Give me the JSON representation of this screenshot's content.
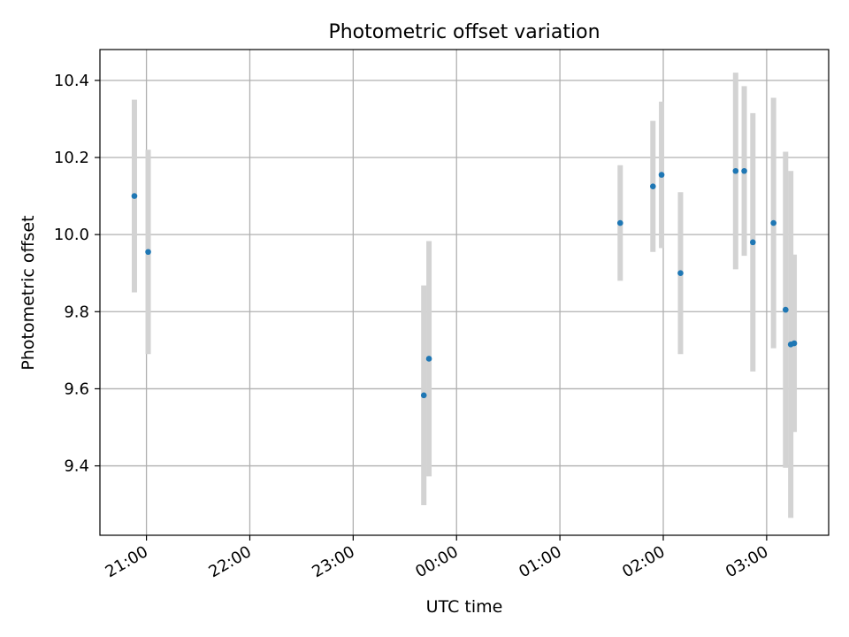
{
  "chart_data": {
    "type": "scatter",
    "title": "Photometric offset variation",
    "xlabel": "UTC time",
    "ylabel": "Photometric offset",
    "x_is_time": true,
    "x_ticks": [
      "21:00",
      "22:00",
      "23:00",
      "00:00",
      "01:00",
      "02:00",
      "03:00"
    ],
    "y_ticks": [
      "9.4",
      "9.6",
      "9.8",
      "10.0",
      "10.2",
      "10.4"
    ],
    "xlim": [
      "20:33",
      "03:36"
    ],
    "ylim": [
      9.22,
      10.48
    ],
    "grid": true,
    "error_bars": true,
    "series": [
      {
        "points": [
          {
            "x": "20:53",
            "y": 10.1,
            "yerr_low": 0.25,
            "yerr_high": 0.25
          },
          {
            "x": "21:01",
            "y": 9.955,
            "yerr_low": 0.265,
            "yerr_high": 0.265
          },
          {
            "x": "23:41",
            "y": 9.583,
            "yerr_low": 0.285,
            "yerr_high": 0.285
          },
          {
            "x": "23:44",
            "y": 9.678,
            "yerr_low": 0.305,
            "yerr_high": 0.305
          },
          {
            "x": "01:35",
            "y": 10.03,
            "yerr_low": 0.15,
            "yerr_high": 0.15
          },
          {
            "x": "01:54",
            "y": 10.125,
            "yerr_low": 0.17,
            "yerr_high": 0.17
          },
          {
            "x": "01:59",
            "y": 10.155,
            "yerr_low": 0.19,
            "yerr_high": 0.19
          },
          {
            "x": "02:10",
            "y": 9.9,
            "yerr_low": 0.21,
            "yerr_high": 0.21
          },
          {
            "x": "02:42",
            "y": 10.165,
            "yerr_low": 0.255,
            "yerr_high": 0.255
          },
          {
            "x": "02:47",
            "y": 10.165,
            "yerr_low": 0.22,
            "yerr_high": 0.22
          },
          {
            "x": "02:52",
            "y": 9.98,
            "yerr_low": 0.335,
            "yerr_high": 0.335
          },
          {
            "x": "03:04",
            "y": 10.03,
            "yerr_low": 0.325,
            "yerr_high": 0.325
          },
          {
            "x": "03:11",
            "y": 9.805,
            "yerr_low": 0.41,
            "yerr_high": 0.41
          },
          {
            "x": "03:14",
            "y": 9.715,
            "yerr_low": 0.45,
            "yerr_high": 0.45
          },
          {
            "x": "03:16",
            "y": 9.718,
            "yerr_low": 0.23,
            "yerr_high": 0.23
          }
        ]
      }
    ],
    "colors": {
      "marker": "#1f77b4",
      "error_bar": "#d3d3d3",
      "grid": "#b0b0b0",
      "axes": "#000000"
    }
  }
}
